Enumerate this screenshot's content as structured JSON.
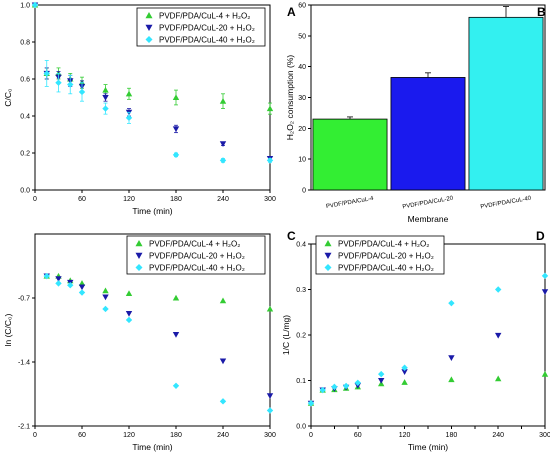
{
  "chart_data": [
    {
      "panel_label": "",
      "type": "scatter",
      "xlabel": "Time (min)",
      "ylabel": "C/C₀",
      "xlim": [
        0,
        300
      ],
      "ylim": [
        0,
        1.0
      ],
      "xticks": [
        0,
        60,
        120,
        180,
        240,
        300
      ],
      "yticks": [
        0.0,
        0.2,
        0.4,
        0.6,
        0.8,
        1.0
      ],
      "x": [
        0,
        15,
        30,
        45,
        60,
        90,
        120,
        180,
        240,
        300
      ],
      "series": [
        {
          "name": "PVDF/PDA/CuL-4 + H₂O₂",
          "marker": "triangle-up",
          "color": "#33cc33",
          "values": [
            1.0,
            0.63,
            0.63,
            0.6,
            0.58,
            0.54,
            0.52,
            0.5,
            0.48,
            0.44
          ],
          "errors": [
            0,
            0.03,
            0.03,
            0.03,
            0.03,
            0.03,
            0.03,
            0.04,
            0.04,
            0.03
          ]
        },
        {
          "name": "PVDF/PDA/CuL-20 + H₂O₂",
          "marker": "triangle-down",
          "color": "#1a1aa8",
          "values": [
            1.0,
            0.63,
            0.61,
            0.59,
            0.56,
            0.5,
            0.42,
            0.33,
            0.25,
            0.17
          ],
          "errors": [
            0,
            0.03,
            0.03,
            0.03,
            0.03,
            0.02,
            0.02,
            0.02,
            0.01,
            0.01
          ]
        },
        {
          "name": "PVDF/PDA/CuL-40 + H₂O₂",
          "marker": "diamond",
          "color": "#33e6ff",
          "values": [
            1.0,
            0.63,
            0.58,
            0.57,
            0.53,
            0.44,
            0.39,
            0.19,
            0.16,
            0.16
          ],
          "errors": [
            0,
            0.07,
            0.05,
            0.05,
            0.05,
            0.03,
            0.03,
            0.01,
            0.01,
            0.01
          ]
        }
      ]
    },
    {
      "panel_label": "A",
      "type": "bar",
      "xlabel": "Membrane",
      "ylabel": "H₂O₂ consumption (%)",
      "ylim": [
        0,
        60
      ],
      "yticks": [
        0,
        10,
        20,
        30,
        40,
        50,
        60
      ],
      "categories": [
        "PVDF/PDA/CuL-4",
        "PVDF/PDA/CuL-20",
        "PVDF/PDA/CuL-40"
      ],
      "values": [
        23,
        36.5,
        56
      ],
      "errors": [
        0.7,
        1.5,
        3.5
      ],
      "colors": [
        "#33ee33",
        "#1a1aee",
        "#33f0f0"
      ]
    },
    {
      "panel_label": "",
      "type": "scatter",
      "xlabel": "Time (min)",
      "ylabel": "ln (C/C₀)",
      "xlim": [
        0,
        300
      ],
      "ylim": [
        -2.1,
        0
      ],
      "xticks": [
        0,
        60,
        120,
        180,
        240,
        300
      ],
      "yticks": [
        -2.1,
        -1.4,
        -0.7
      ],
      "x": [
        15,
        30,
        45,
        60,
        90,
        120,
        180,
        240,
        300
      ],
      "series": [
        {
          "name": "PVDF/PDA/CuL-4 + H₂O₂",
          "marker": "triangle-up",
          "color": "#33cc33",
          "values": [
            -0.46,
            -0.46,
            -0.51,
            -0.54,
            -0.62,
            -0.65,
            -0.7,
            -0.73,
            -0.82
          ]
        },
        {
          "name": "PVDF/PDA/CuL-20 + H₂O₂",
          "marker": "triangle-down",
          "color": "#1a1aa8",
          "values": [
            -0.46,
            -0.49,
            -0.53,
            -0.58,
            -0.69,
            -0.87,
            -1.1,
            -1.39,
            -1.77
          ]
        },
        {
          "name": "PVDF/PDA/CuL-40 + H₂O₂",
          "marker": "diamond",
          "color": "#33e6ff",
          "values": [
            -0.46,
            -0.54,
            -0.56,
            -0.64,
            -0.82,
            -0.94,
            -1.66,
            -1.83,
            -1.93
          ]
        }
      ]
    },
    {
      "panel_label": "C",
      "type": "scatter",
      "xlabel": "Time (min)",
      "ylabel": "1/C (L/mg)",
      "xlim": [
        0,
        300
      ],
      "ylim": [
        0,
        0.4
      ],
      "xticks": [
        0,
        30,
        60,
        90,
        120,
        150,
        180,
        210,
        240,
        270,
        300
      ],
      "xticklabels": [
        "0",
        "",
        "60",
        "",
        "120",
        "",
        "180",
        "",
        "240",
        "",
        "300"
      ],
      "yticks": [
        0.0,
        0.1,
        0.2,
        0.3,
        0.4
      ],
      "x": [
        0,
        15,
        30,
        45,
        60,
        90,
        120,
        180,
        240,
        300
      ],
      "series": [
        {
          "name": "PVDF/PDA/CuL-4 + H₂O₂",
          "marker": "triangle-up",
          "color": "#33cc33",
          "values": [
            0.05,
            0.079,
            0.08,
            0.083,
            0.086,
            0.093,
            0.096,
            0.102,
            0.104,
            0.114
          ]
        },
        {
          "name": "PVDF/PDA/CuL-20 + H₂O₂",
          "marker": "triangle-down",
          "color": "#1a1aa8",
          "values": [
            0.05,
            0.079,
            0.082,
            0.085,
            0.089,
            0.1,
            0.119,
            0.15,
            0.199,
            0.295
          ]
        },
        {
          "name": "PVDF/PDA/CuL-40 + H₂O₂",
          "marker": "diamond",
          "color": "#33e6ff",
          "values": [
            0.05,
            0.079,
            0.086,
            0.088,
            0.095,
            0.114,
            0.128,
            0.27,
            0.3,
            0.33
          ]
        }
      ]
    }
  ],
  "extra_labels": {
    "B": "B",
    "D": "D"
  }
}
